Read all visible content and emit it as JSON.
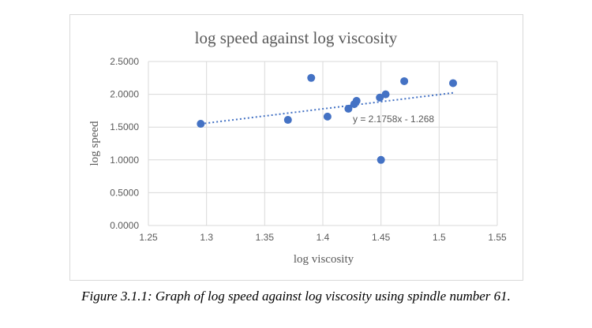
{
  "chart_data": {
    "type": "scatter",
    "title": "log speed against log viscosity",
    "xlabel": "log viscosity",
    "ylabel": "log speed",
    "xlim": [
      1.25,
      1.55
    ],
    "ylim": [
      0,
      2.5
    ],
    "xticks": [
      "1.25",
      "1.3",
      "1.35",
      "1.4",
      "1.45",
      "1.5",
      "1.55"
    ],
    "yticks": [
      "0.0000",
      "0.5000",
      "1.0000",
      "1.5000",
      "2.0000",
      "2.5000"
    ],
    "grid": true,
    "points": [
      {
        "x": 1.295,
        "y": 1.55
      },
      {
        "x": 1.37,
        "y": 1.61
      },
      {
        "x": 1.39,
        "y": 2.25
      },
      {
        "x": 1.404,
        "y": 1.66
      },
      {
        "x": 1.422,
        "y": 1.78
      },
      {
        "x": 1.427,
        "y": 1.85
      },
      {
        "x": 1.429,
        "y": 1.9
      },
      {
        "x": 1.449,
        "y": 1.95
      },
      {
        "x": 1.454,
        "y": 2.0
      },
      {
        "x": 1.45,
        "y": 1.0
      },
      {
        "x": 1.47,
        "y": 2.2
      },
      {
        "x": 1.512,
        "y": 2.17
      }
    ],
    "trendline": {
      "slope": 2.1758,
      "intercept": -1.268,
      "label": "y = 2.1758x - 1.268",
      "style": "dotted"
    },
    "colors": {
      "marker": "#4472c4",
      "grid": "#d9d9d9",
      "text": "#595959"
    }
  },
  "caption": "Figure 3.1.1: Graph of log speed against log viscosity using spindle number 61."
}
